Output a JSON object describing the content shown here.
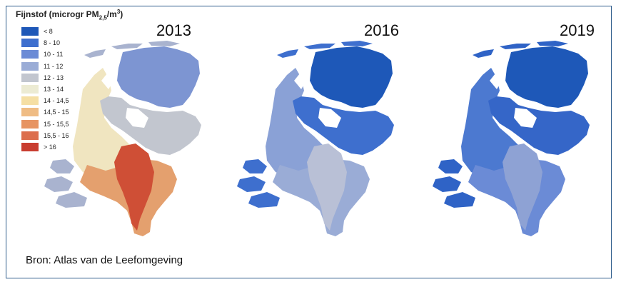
{
  "legend": {
    "title": "Fijnstof (microgr PM",
    "title_sub": "2,5",
    "title_mid": "/m",
    "title_sup": "3",
    "title_end": ")",
    "items": [
      {
        "label": "< 8",
        "color": "#1e58b8"
      },
      {
        "label": "8 - 10",
        "color": "#3e6fce"
      },
      {
        "label": "10 - 11",
        "color": "#6b8bd6"
      },
      {
        "label": "11 - 12",
        "color": "#9aacd6"
      },
      {
        "label": "12 - 13",
        "color": "#c2c6cf"
      },
      {
        "label": "13 - 14",
        "color": "#ecebd3"
      },
      {
        "label": "14 - 14,5",
        "color": "#f5dfa4"
      },
      {
        "label": "14,5 - 15",
        "color": "#efbc84"
      },
      {
        "label": "15 - 15,5",
        "color": "#e79462"
      },
      {
        "label": "15,5 - 16",
        "color": "#dc6e4d"
      },
      {
        "label": "> 16",
        "color": "#c93d30"
      }
    ]
  },
  "maps": [
    {
      "year": "2013",
      "colors": {
        "north": "#7d95d2",
        "mid": "#c2c6cf",
        "coast": "#f0e5c0",
        "south": "#e4a06e",
        "hot": "#cf4f36",
        "islands": "#a9b3cf"
      }
    },
    {
      "year": "2016",
      "colors": {
        "north": "#1e58b8",
        "mid": "#3e6fce",
        "coast": "#8aa1d6",
        "south": "#9aacd6",
        "hot": "#b9c0d6",
        "islands": "#3e6fce"
      }
    },
    {
      "year": "2019",
      "colors": {
        "north": "#1e58b8",
        "mid": "#3566c8",
        "coast": "#4c79d0",
        "south": "#6b8bd6",
        "hot": "#8ea2d4",
        "islands": "#2f63c6"
      }
    }
  ],
  "source": "Bron: Atlas van de Leefomgeving"
}
